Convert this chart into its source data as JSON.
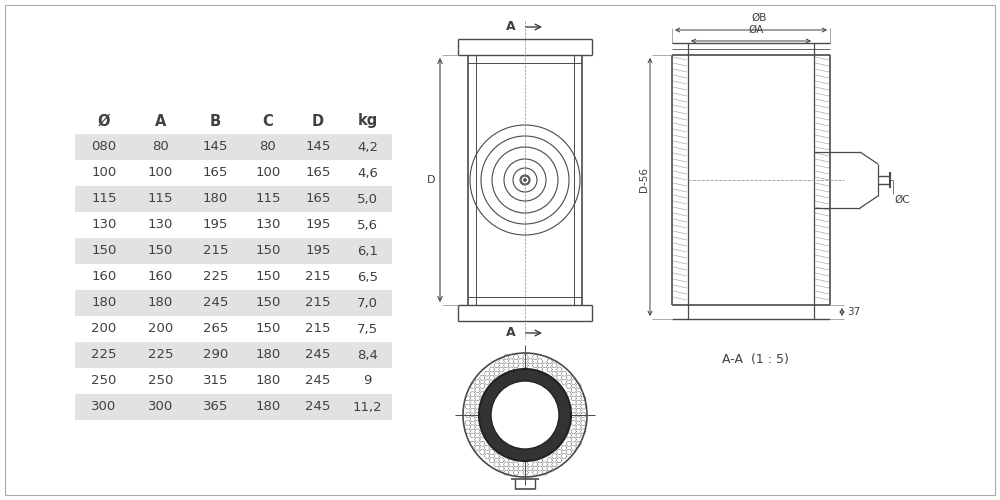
{
  "table_headers": [
    "Ø",
    "A",
    "B",
    "C",
    "D",
    "kg"
  ],
  "table_rows": [
    [
      "080",
      "80",
      "145",
      "80",
      "145",
      "4,2"
    ],
    [
      "100",
      "100",
      "165",
      "100",
      "165",
      "4,6"
    ],
    [
      "115",
      "115",
      "180",
      "115",
      "165",
      "5,0"
    ],
    [
      "130",
      "130",
      "195",
      "130",
      "195",
      "5,6"
    ],
    [
      "150",
      "150",
      "215",
      "150",
      "195",
      "6,1"
    ],
    [
      "160",
      "160",
      "225",
      "150",
      "215",
      "6,5"
    ],
    [
      "180",
      "180",
      "245",
      "150",
      "215",
      "7,0"
    ],
    [
      "200",
      "200",
      "265",
      "150",
      "215",
      "7,5"
    ],
    [
      "225",
      "225",
      "290",
      "180",
      "245",
      "8,4"
    ],
    [
      "250",
      "250",
      "315",
      "180",
      "245",
      "9"
    ],
    [
      "300",
      "300",
      "365",
      "180",
      "245",
      "11,2"
    ]
  ],
  "row_bg_shaded": "#e2e2e2",
  "row_bg_white": "#ffffff",
  "text_color": "#404040",
  "bg_color": "#ffffff",
  "line_color": "#4a4a4a",
  "font_size_table": 9.5,
  "font_size_label": 8.0,
  "font_size_dim": 7.5
}
